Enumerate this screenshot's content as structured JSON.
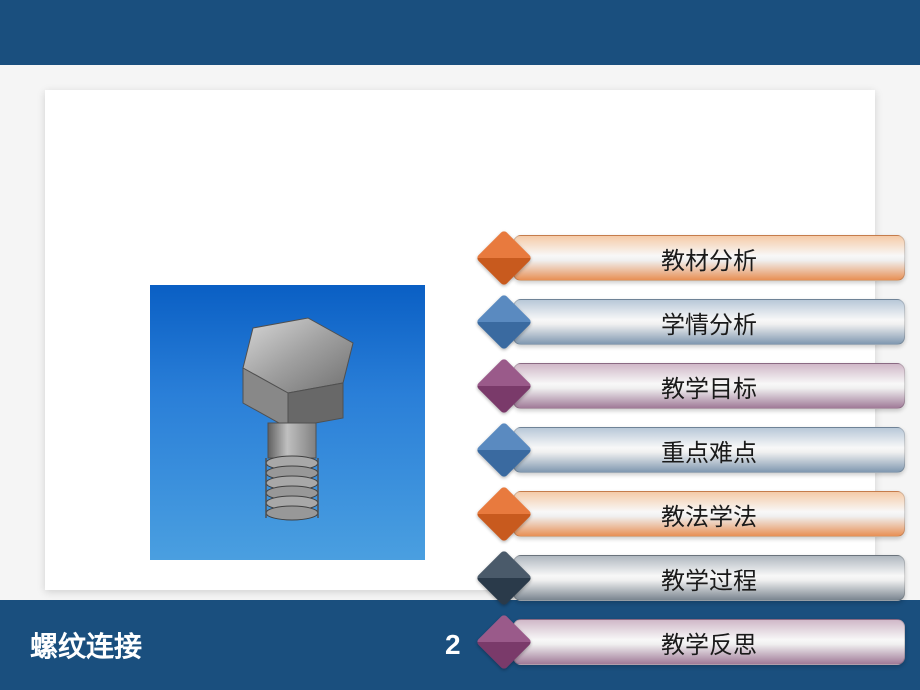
{
  "slide": {
    "footer_title": "螺纹连接",
    "page_number": "2"
  },
  "menu": {
    "items": [
      {
        "label": "教材分析",
        "diamond_color": "#e87a3e",
        "diamond_shadow": "#c85a1e",
        "pill_top": "#f5cba8",
        "pill_bottom": "#e89055"
      },
      {
        "label": "学情分析",
        "diamond_color": "#5a8ac0",
        "diamond_shadow": "#3a6aa0",
        "pill_top": "#b8c8d8",
        "pill_bottom": "#8098b0"
      },
      {
        "label": "教学目标",
        "diamond_color": "#9a5a8a",
        "diamond_shadow": "#7a3a6a",
        "pill_top": "#d0b8c8",
        "pill_bottom": "#a07a98"
      },
      {
        "label": "重点难点",
        "diamond_color": "#5a8ac0",
        "diamond_shadow": "#3a6aa0",
        "pill_top": "#b8c8d8",
        "pill_bottom": "#8098b0"
      },
      {
        "label": "教法学法",
        "diamond_color": "#e87a3e",
        "diamond_shadow": "#c85a1e",
        "pill_top": "#f5cba8",
        "pill_bottom": "#e89055"
      },
      {
        "label": "教学过程",
        "diamond_color": "#4a5a6a",
        "diamond_shadow": "#2a3a4a",
        "pill_top": "#b0b8c0",
        "pill_bottom": "#7a8590"
      },
      {
        "label": "教学反思",
        "diamond_color": "#9a5a8a",
        "diamond_shadow": "#7a3a6a",
        "pill_top": "#d0b8c8",
        "pill_bottom": "#a07a98"
      }
    ]
  },
  "colors": {
    "header_bg": "#1a4f7e",
    "content_bg": "#ffffff",
    "page_bg": "#f5f5f5",
    "accent_blue": "#2a7fcc"
  }
}
